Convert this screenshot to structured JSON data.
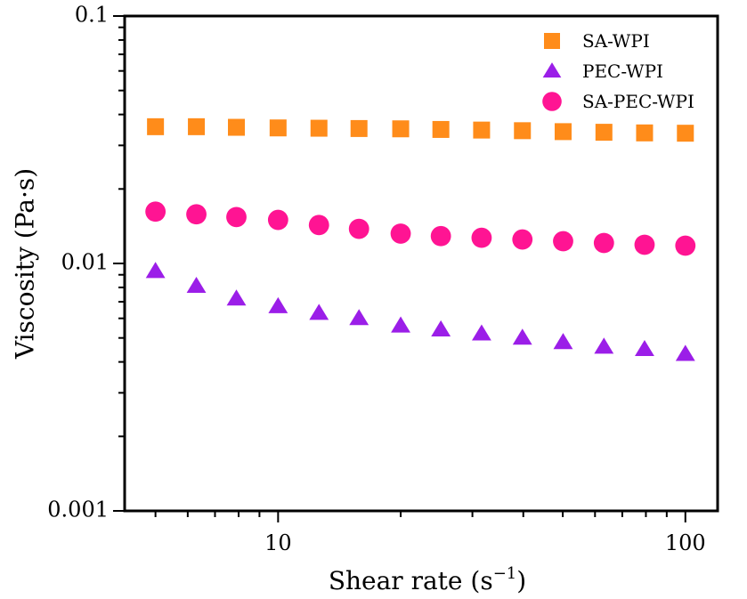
{
  "chart_data": {
    "type": "scatter",
    "title": "",
    "xlabel": "Shear rate (s",
    "xlabel_sup": "−1",
    "xlabel_suffix": ")",
    "ylabel": "Viscosity (Pa·s)",
    "xscale": "log",
    "yscale": "log",
    "xlim": [
      4.2,
      120
    ],
    "ylim": [
      0.001,
      0.1
    ],
    "x_ticks": [
      10,
      100
    ],
    "x_tick_labels": [
      "10",
      "100"
    ],
    "y_ticks": [
      0.001,
      0.01,
      0.1
    ],
    "y_tick_labels": [
      "0.001",
      "0.01",
      "0.1"
    ],
    "legend_position": "top-right",
    "x": [
      5,
      6.3,
      7.9,
      10,
      12.6,
      15.8,
      20,
      25.1,
      31.6,
      39.8,
      50.1,
      63.1,
      79.4,
      100
    ],
    "series": [
      {
        "name": "SA-WPI",
        "marker": "square",
        "color": "#ff8c1a",
        "values": [
          0.0357,
          0.0357,
          0.0355,
          0.0353,
          0.0352,
          0.0351,
          0.035,
          0.0348,
          0.0346,
          0.0344,
          0.0341,
          0.0339,
          0.0337,
          0.0336
        ]
      },
      {
        "name": "PEC-WPI",
        "marker": "triangle",
        "color": "#9b1ee8",
        "values": [
          0.0093,
          0.0081,
          0.0072,
          0.0067,
          0.0063,
          0.006,
          0.0056,
          0.0054,
          0.0052,
          0.005,
          0.0048,
          0.0046,
          0.0045,
          0.0043
        ]
      },
      {
        "name": "SA-PEC-WPI",
        "marker": "circle",
        "color": "#ff1493",
        "values": [
          0.0162,
          0.0158,
          0.0154,
          0.015,
          0.0143,
          0.0138,
          0.0132,
          0.0129,
          0.0127,
          0.0125,
          0.0123,
          0.0121,
          0.0119,
          0.0118
        ]
      }
    ]
  }
}
